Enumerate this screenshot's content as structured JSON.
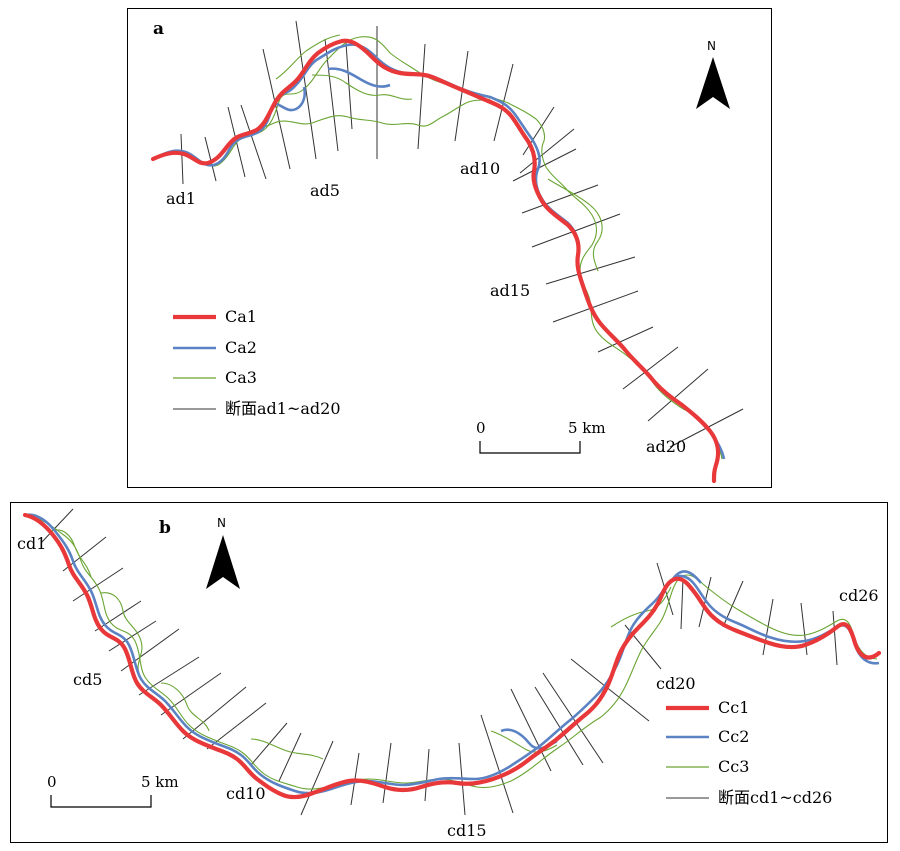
{
  "panel_a": {
    "letter": "a",
    "north": "N",
    "section_labels": [
      "ad1",
      "ad5",
      "ad10",
      "ad15",
      "ad20"
    ],
    "legend": {
      "ca1": "Ca1",
      "ca2": "Ca2",
      "ca3": "Ca3",
      "section": "断面ad1~ad20"
    },
    "scale": {
      "zero": "0",
      "end": "5 km"
    }
  },
  "panel_b": {
    "letter": "b",
    "north": "N",
    "section_labels": [
      "cd1",
      "cd5",
      "cd10",
      "cd15",
      "cd20",
      "cd26"
    ],
    "legend": {
      "cc1": "Cc1",
      "cc2": "Cc2",
      "cc3": "Cc3",
      "section": "断面cd1~cd26"
    },
    "scale": {
      "zero": "0",
      "end": "5 km"
    }
  },
  "colors": {
    "channel_1": "#e8383a",
    "channel_2": "#5b82c2",
    "channel_3": "#6aa533",
    "section": "#333333"
  }
}
